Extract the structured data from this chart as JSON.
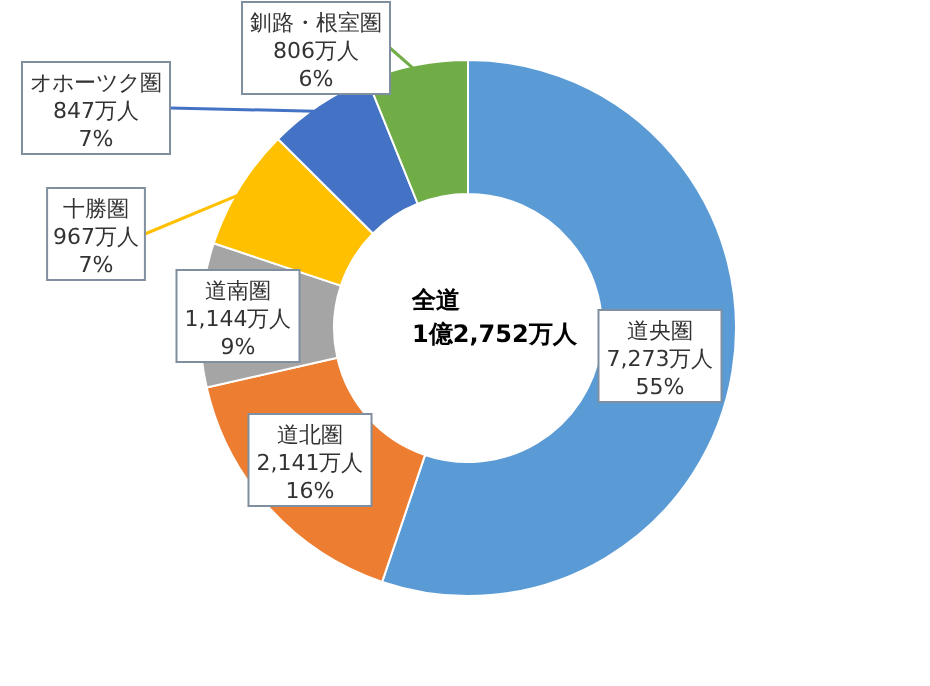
{
  "chart_data": {
    "type": "donut",
    "categories": [
      "道央圏",
      "道北圏",
      "道南圏",
      "十勝圏",
      "オホーツク圏",
      "釧路・根室圏"
    ],
    "values": [
      7273,
      2141,
      1144,
      967,
      847,
      806
    ],
    "colors": [
      "#5b9bd5",
      "#ed7d31",
      "#a5a5a5",
      "#ffc000",
      "#4472c4",
      "#70ad47"
    ],
    "value_labels": [
      "7,273万人\n55%",
      "2,141万人\n16%",
      "1,144万人\n9%",
      "967万人\n7%",
      "847万人\n7%",
      "806万人\n6%"
    ],
    "annotations": [
      "全道",
      "1億2,752万人"
    ]
  }
}
